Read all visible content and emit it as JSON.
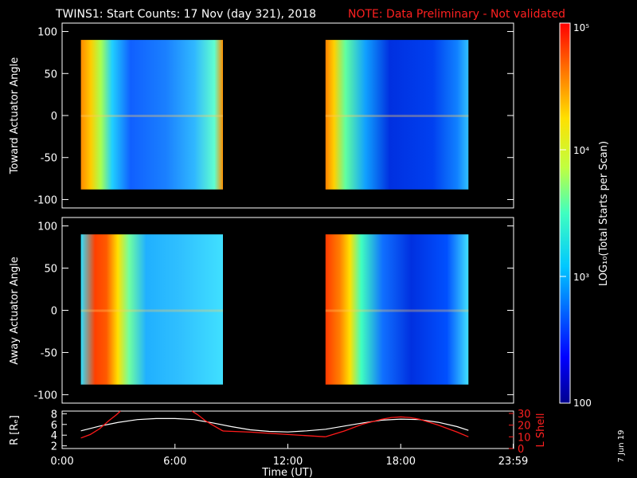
{
  "header": {
    "title": "TWINS1: Start Counts: 17 Nov (day 321), 2018",
    "note": "NOTE: Data Preliminary - Not validated"
  },
  "datestamp": "7 Jun 19",
  "chart_data": [
    {
      "type": "heatmap",
      "name": "toward",
      "ylabel": "Toward Actuator Angle",
      "ylim": [
        -110,
        110
      ],
      "yticks": [
        "100",
        "50",
        "0",
        "-50",
        "-100"
      ],
      "ytick_values": [
        100,
        50,
        0,
        -50,
        -100
      ],
      "coverage_hours": [
        [
          1.0,
          8.55
        ],
        [
          14.0,
          21.6
        ]
      ],
      "angle_range": [
        -88,
        90
      ]
    },
    {
      "type": "heatmap",
      "name": "away",
      "ylabel": "Away Actuator Angle",
      "ylim": [
        -110,
        110
      ],
      "yticks": [
        "100",
        "50",
        "0",
        "-50",
        "-100"
      ],
      "ytick_values": [
        100,
        50,
        0,
        -50,
        -100
      ],
      "coverage_hours": [
        [
          1.0,
          8.55
        ],
        [
          14.0,
          21.6
        ]
      ],
      "angle_range": [
        -88,
        90
      ]
    },
    {
      "type": "line",
      "name": "orbit",
      "xlabel": "Time (UT)",
      "xticks": [
        "0:00",
        "6:00",
        "12:00",
        "18:00",
        "23:59"
      ],
      "xtick_values": [
        0,
        6,
        12,
        18,
        23.98
      ],
      "xlim": [
        0,
        24
      ],
      "ylabel_left": "R [Rₑ]",
      "yticks_left": [
        "8",
        "6",
        "4",
        "2"
      ],
      "ytick_left_values": [
        8,
        6,
        4,
        2
      ],
      "ylim_left": [
        1.5,
        8.5
      ],
      "ylabel_right": "L Shell",
      "yticks_right": [
        "30",
        "20",
        "10",
        "0"
      ],
      "ytick_right_values": [
        30,
        20,
        10,
        0
      ],
      "ylim_right": [
        0,
        32
      ],
      "series": [
        {
          "name": "R",
          "color": "#ffffff",
          "x": [
            1.0,
            2,
            3,
            4,
            5,
            6,
            7,
            8,
            9,
            10,
            11,
            12,
            13,
            14.0,
            15,
            16,
            17,
            18,
            19,
            20,
            21,
            21.6
          ],
          "y": [
            4.8,
            5.7,
            6.4,
            6.9,
            7.1,
            7.1,
            6.9,
            6.3,
            5.6,
            5.0,
            4.7,
            4.6,
            4.8,
            5.1,
            5.7,
            6.3,
            6.8,
            7.0,
            6.9,
            6.4,
            5.6,
            4.9
          ]
        },
        {
          "name": "L Shell",
          "color": "#ff1a1a",
          "segments": [
            {
              "x": [
                1.0,
                1.5,
                2.0,
                2.5,
                2.9,
                3.1
              ],
              "y": [
                9,
                12,
                17,
                24,
                29,
                33
              ]
            },
            {
              "x": [
                6.9,
                7.2,
                7.6,
                8.0,
                8.55
              ],
              "y": [
                33,
                29,
                24,
                20,
                15
              ]
            },
            {
              "x": [
                8.55,
                10,
                11,
                12,
                13,
                14.0
              ],
              "y": [
                15,
                14,
                13,
                12,
                11,
                10
              ]
            },
            {
              "x": [
                14.0,
                15,
                16,
                17,
                17.5,
                18,
                18.5,
                19,
                20,
                21,
                21.6
              ],
              "y": [
                10,
                15,
                21,
                25,
                26.5,
                27,
                26.5,
                25,
                20,
                14,
                10
              ]
            }
          ]
        }
      ]
    },
    {
      "type": "colorbar",
      "name": "colorbar",
      "label": "LOG₁₀(Total Starts per Scan)",
      "ticks": [
        "10⁵",
        "10⁴",
        "10³",
        "100"
      ],
      "tick_values": [
        5,
        4,
        3,
        2
      ]
    }
  ]
}
